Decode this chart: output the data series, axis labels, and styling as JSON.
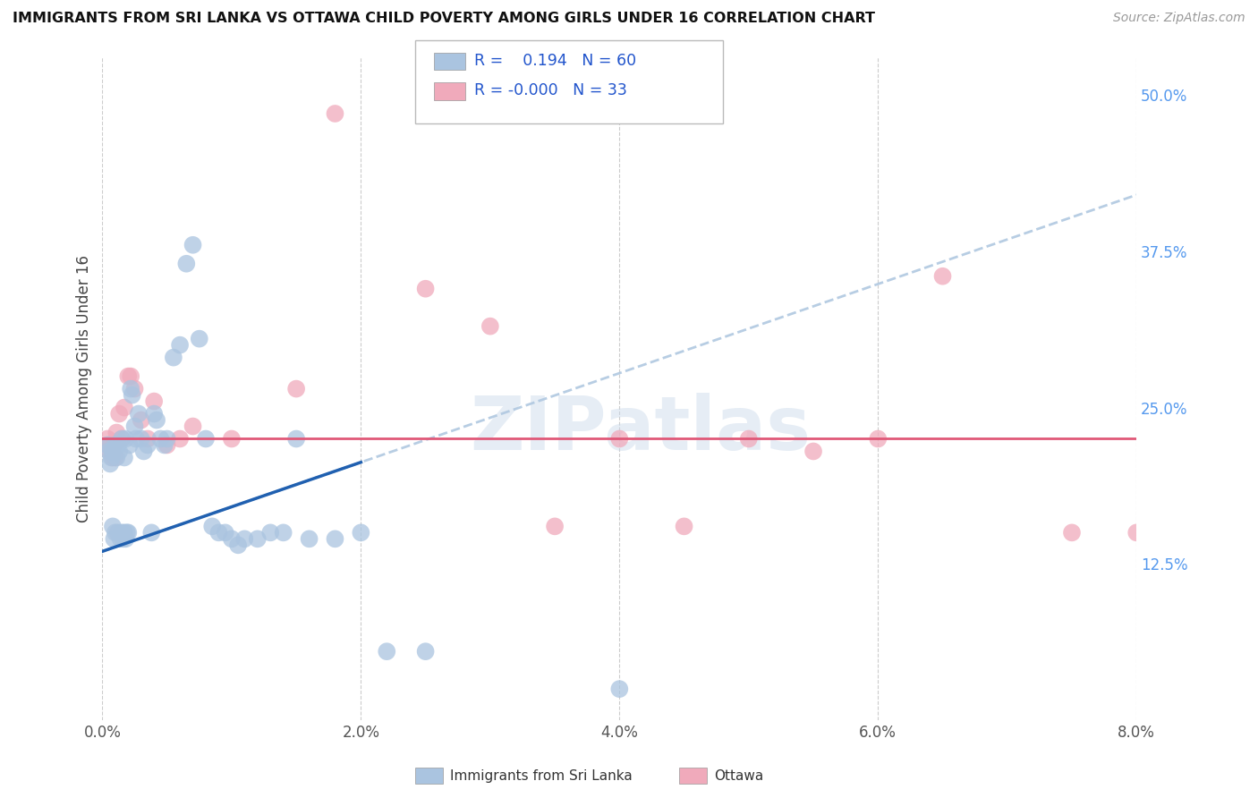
{
  "title": "IMMIGRANTS FROM SRI LANKA VS OTTAWA CHILD POVERTY AMONG GIRLS UNDER 16 CORRELATION CHART",
  "source": "Source: ZipAtlas.com",
  "ylabel": "Child Poverty Among Girls Under 16",
  "x_tick_labels": [
    "0.0%",
    "2.0%",
    "4.0%",
    "6.0%",
    "8.0%"
  ],
  "x_tick_values": [
    0.0,
    2.0,
    4.0,
    6.0,
    8.0
  ],
  "y_tick_labels": [
    "12.5%",
    "25.0%",
    "37.5%",
    "50.0%"
  ],
  "y_tick_values": [
    12.5,
    25.0,
    37.5,
    50.0
  ],
  "xlim": [
    0.0,
    8.0
  ],
  "ylim": [
    0.0,
    53.0
  ],
  "legend_labels": [
    "Immigrants from Sri Lanka",
    "Ottawa"
  ],
  "legend_r_values": [
    "0.194",
    "-0.000"
  ],
  "legend_n_values": [
    "60",
    "33"
  ],
  "blue_color": "#aac4e0",
  "pink_color": "#f0aabb",
  "trend_blue_solid": "#2060b0",
  "trend_blue_dash": "#b0c8e0",
  "trend_pink": "#e05878",
  "watermark": "ZIPatlas",
  "blue_x": [
    0.04,
    0.05,
    0.06,
    0.07,
    0.08,
    0.08,
    0.09,
    0.1,
    0.1,
    0.11,
    0.12,
    0.12,
    0.13,
    0.14,
    0.15,
    0.15,
    0.16,
    0.17,
    0.17,
    0.18,
    0.18,
    0.19,
    0.2,
    0.21,
    0.22,
    0.23,
    0.25,
    0.26,
    0.28,
    0.3,
    0.32,
    0.35,
    0.38,
    0.4,
    0.42,
    0.45,
    0.48,
    0.5,
    0.55,
    0.6,
    0.65,
    0.7,
    0.75,
    0.8,
    0.85,
    0.9,
    0.95,
    1.0,
    1.05,
    1.1,
    1.2,
    1.3,
    1.4,
    1.5,
    1.6,
    1.8,
    2.0,
    2.2,
    2.5,
    4.0
  ],
  "blue_y": [
    22.0,
    21.5,
    20.5,
    21.0,
    15.5,
    21.5,
    14.5,
    15.0,
    22.0,
    21.0,
    15.0,
    22.0,
    21.5,
    14.5,
    15.0,
    22.5,
    14.5,
    21.0,
    15.0,
    14.5,
    22.5,
    15.0,
    15.0,
    22.0,
    26.5,
    26.0,
    23.5,
    22.5,
    24.5,
    22.5,
    21.5,
    22.0,
    15.0,
    24.5,
    24.0,
    22.5,
    22.0,
    22.5,
    29.0,
    30.0,
    36.5,
    38.0,
    30.5,
    22.5,
    15.5,
    15.0,
    15.0,
    14.5,
    14.0,
    14.5,
    14.5,
    15.0,
    15.0,
    22.5,
    14.5,
    14.5,
    15.0,
    5.5,
    5.5,
    2.5
  ],
  "pink_x": [
    0.04,
    0.05,
    0.06,
    0.08,
    0.09,
    0.1,
    0.11,
    0.13,
    0.15,
    0.17,
    0.2,
    0.22,
    0.25,
    0.3,
    0.35,
    0.4,
    0.5,
    0.6,
    0.7,
    1.0,
    1.5,
    1.8,
    2.5,
    3.0,
    3.5,
    4.0,
    4.5,
    5.0,
    5.5,
    6.0,
    6.5,
    7.5,
    8.0
  ],
  "pink_y": [
    22.5,
    22.0,
    21.5,
    21.0,
    22.0,
    21.0,
    23.0,
    24.5,
    22.5,
    25.0,
    27.5,
    27.5,
    26.5,
    24.0,
    22.5,
    25.5,
    22.0,
    22.5,
    23.5,
    22.5,
    26.5,
    48.5,
    34.5,
    31.5,
    15.5,
    22.5,
    15.5,
    22.5,
    21.5,
    22.5,
    35.5,
    15.0,
    15.0
  ],
  "trend_blue_x0": 0.0,
  "trend_blue_y0": 13.5,
  "trend_blue_x1": 8.0,
  "trend_blue_y1": 42.0,
  "trend_pink_y": 22.5
}
